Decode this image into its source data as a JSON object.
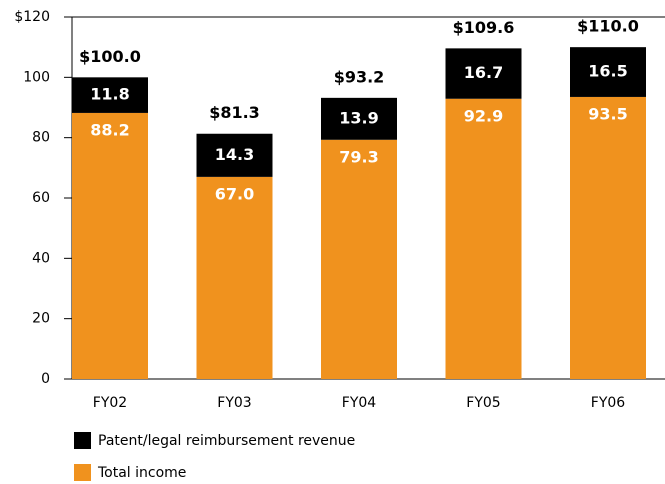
{
  "chart_data": {
    "type": "stacked_bar",
    "categories": [
      "FY02",
      "FY03",
      "FY04",
      "FY05",
      "FY06"
    ],
    "series": [
      {
        "name": "Total income",
        "color": "#f0921e",
        "values": [
          88.2,
          67.0,
          79.3,
          92.9,
          93.5
        ],
        "value_labels": [
          "88.2",
          "67.0",
          "79.3",
          "92.9",
          "93.5"
        ]
      },
      {
        "name": "Patent/legal reimbursement revenue",
        "color": "#000000",
        "values": [
          11.8,
          14.3,
          13.9,
          16.7,
          16.5
        ],
        "value_labels": [
          "11.8",
          "14.3",
          "13.9",
          "16.7",
          "16.5"
        ]
      }
    ],
    "totals": [
      100.0,
      81.3,
      93.2,
      109.6,
      110.0
    ],
    "total_labels": [
      "$100.0",
      "$81.3",
      "$93.2",
      "$109.6",
      "$110.0"
    ],
    "ylim": [
      0,
      120
    ],
    "yticks": [
      0,
      20,
      40,
      60,
      80,
      100,
      {
        "value": 120,
        "label": "$120"
      }
    ]
  }
}
